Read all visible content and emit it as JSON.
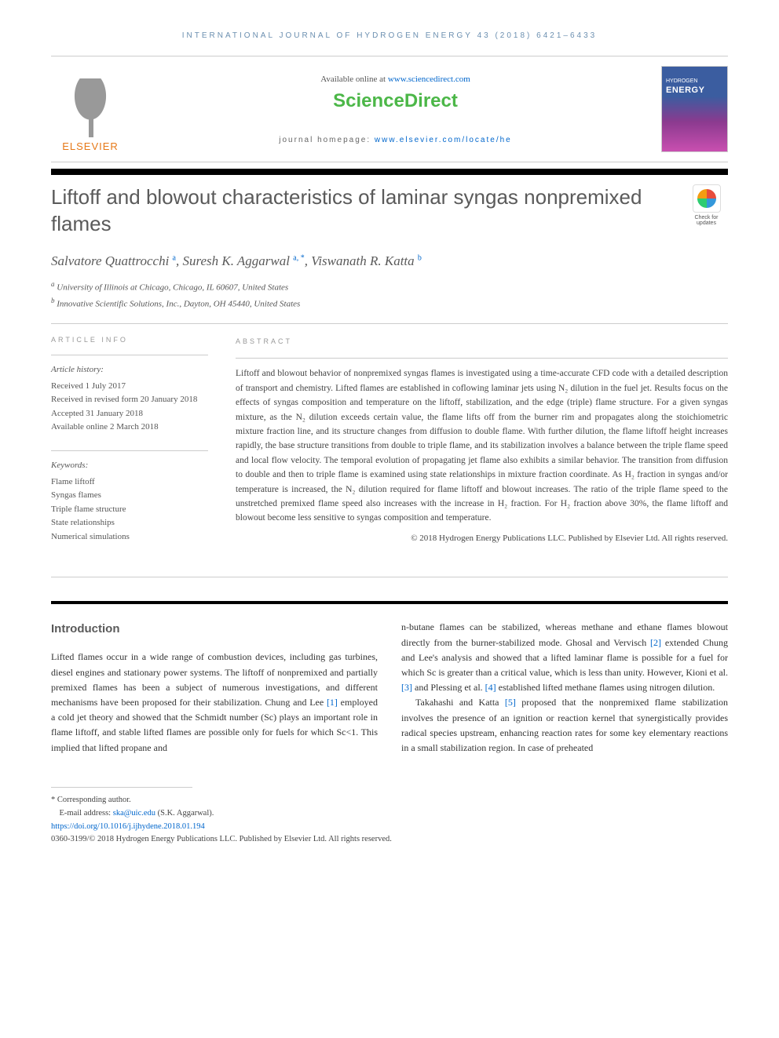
{
  "header": {
    "journal_ref": "INTERNATIONAL JOURNAL OF HYDROGEN ENERGY 43 (2018) 6421–6433",
    "available_text": "Available online at ",
    "sd_url": "www.sciencedirect.com",
    "sd_logo": "ScienceDirect",
    "journal_home_label": "journal homepage: ",
    "journal_home_url": "www.elsevier.com/locate/he",
    "elsevier": "ELSEVIER",
    "cover_top": "HYDROGEN",
    "cover_main": "ENERGY"
  },
  "article": {
    "title": "Liftoff and blowout characteristics of laminar syngas nonpremixed flames",
    "check_label": "Check for updates",
    "authors_html": "Salvatore Quattrocchi <sup>a</sup>, Suresh K. Aggarwal <sup>a, *</sup>, Viswanath R. Katta <sup>b</sup>",
    "affiliations": [
      "University of Illinois at Chicago, Chicago, IL 60607, United States",
      "Innovative Scientific Solutions, Inc., Dayton, OH 45440, United States"
    ]
  },
  "info": {
    "heading": "ARTICLE INFO",
    "history_label": "Article history:",
    "received": "Received 1 July 2017",
    "revised": "Received in revised form 20 January 2018",
    "accepted": "Accepted 31 January 2018",
    "online": "Available online 2 March 2018",
    "keywords_label": "Keywords:",
    "keywords": [
      "Flame liftoff",
      "Syngas flames",
      "Triple flame structure",
      "State relationships",
      "Numerical simulations"
    ]
  },
  "abstract": {
    "heading": "ABSTRACT",
    "text": "Liftoff and blowout behavior of nonpremixed syngas flames is investigated using a time-accurate CFD code with a detailed description of transport and chemistry. Lifted flames are established in coflowing laminar jets using N₂ dilution in the fuel jet. Results focus on the effects of syngas composition and temperature on the liftoff, stabilization, and the edge (triple) flame structure. For a given syngas mixture, as the N₂ dilution exceeds certain value, the flame lifts off from the burner rim and propagates along the stoichiometric mixture fraction line, and its structure changes from diffusion to double flame. With further dilution, the flame liftoff height increases rapidly, the base structure transitions from double to triple flame, and its stabilization involves a balance between the triple flame speed and local flow velocity. The temporal evolution of propagating jet flame also exhibits a similar behavior. The transition from diffusion to double and then to triple flame is examined using state relationships in mixture fraction coordinate. As H₂ fraction in syngas and/or temperature is increased, the N₂ dilution required for flame liftoff and blowout increases. The ratio of the triple flame speed to the unstretched premixed flame speed also increases with the increase in H₂ fraction. For H₂ fraction above 30%, the flame liftoff and blowout become less sensitive to syngas composition and temperature.",
    "copyright": "© 2018 Hydrogen Energy Publications LLC. Published by Elsevier Ltd. All rights reserved."
  },
  "body": {
    "intro_heading": "Introduction",
    "col1": "Lifted flames occur in a wide range of combustion devices, including gas turbines, diesel engines and stationary power systems. The liftoff of nonpremixed and partially premixed flames has been a subject of numerous investigations, and different mechanisms have been proposed for their stabilization. Chung and Lee [1] employed a cold jet theory and showed that the Schmidt number (Sc) plays an important role in flame liftoff, and stable lifted flames are possible only for fuels for which Sc<1. This implied that lifted propane and",
    "col2_p1": "n-butane flames can be stabilized, whereas methane and ethane flames blowout directly from the burner-stabilized mode. Ghosal and Vervisch [2] extended Chung and Lee's analysis and showed that a lifted laminar flame is possible for a fuel for which Sc is greater than a critical value, which is less than unity. However, Kioni et al. [3] and Plessing et al. [4] established lifted methane flames using nitrogen dilution.",
    "col2_p2": "Takahashi and Katta [5] proposed that the nonpremixed flame stabilization involves the presence of an ignition or reaction kernel that synergistically provides radical species upstream, enhancing reaction rates for some key elementary reactions in a small stabilization region. In case of preheated"
  },
  "footer": {
    "corr": "* Corresponding author.",
    "email_label": "E-mail address: ",
    "email": "ska@uic.edu",
    "email_name": " (S.K. Aggarwal).",
    "doi": "https://doi.org/10.1016/j.ijhydene.2018.01.194",
    "issn_copy": "0360-3199/© 2018 Hydrogen Energy Publications LLC. Published by Elsevier Ltd. All rights reserved."
  },
  "refs": {
    "r1": "[1]",
    "r2": "[2]",
    "r3": "[3]",
    "r4": "[4]",
    "r5": "[5]"
  }
}
